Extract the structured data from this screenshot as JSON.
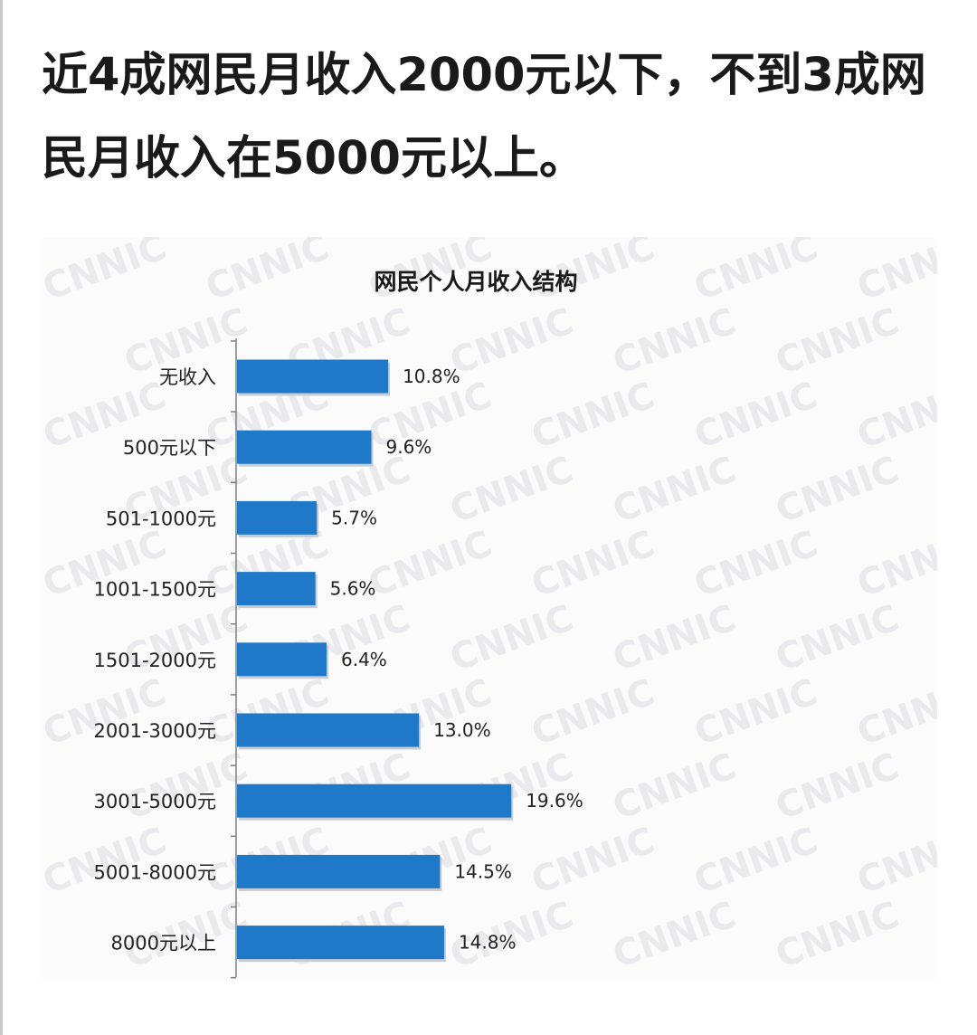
{
  "headline": "近4成网民月收入2000元以下，不到3成网民月收入在5000元以上。",
  "watermark_text": "CNNIC",
  "chart_data": {
    "type": "bar",
    "orientation": "horizontal",
    "title": "网民个人月收入结构",
    "categories": [
      "无收入",
      "500元以下",
      "501-1000元",
      "1001-1500元",
      "1501-2000元",
      "2001-3000元",
      "3001-5000元",
      "5001-8000元",
      "8000元以上"
    ],
    "values": [
      10.8,
      9.6,
      5.7,
      5.6,
      6.4,
      13.0,
      19.6,
      14.5,
      14.8
    ],
    "value_labels": [
      "10.8%",
      "9.6%",
      "5.7%",
      "5.6%",
      "6.4%",
      "13.0%",
      "19.6%",
      "14.5%",
      "14.8%"
    ],
    "xlabel": "",
    "ylabel": "",
    "unit": "%",
    "bar_color": "#1f78c8",
    "grid": false,
    "legend": "none"
  }
}
